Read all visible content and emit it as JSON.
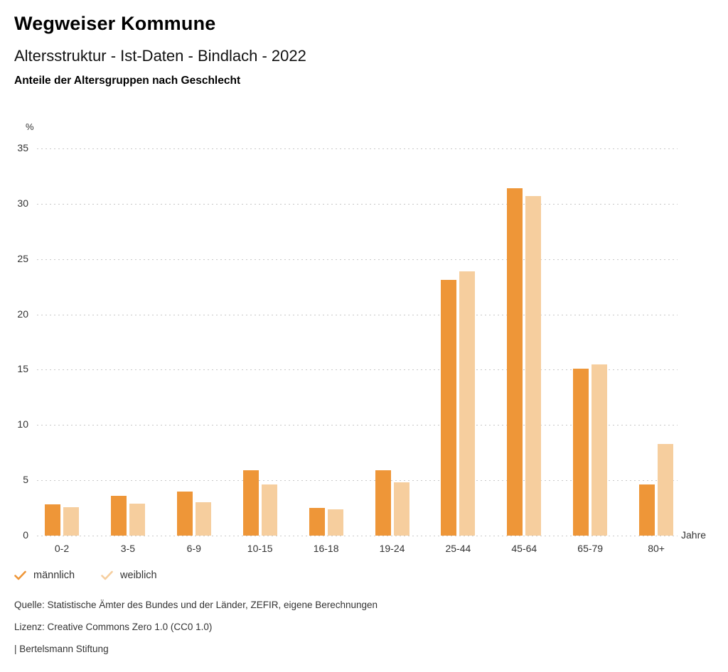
{
  "header": {
    "title": "Wegweiser Kommune",
    "subtitle": "Altersstruktur - Ist-Daten - Bindlach - 2022",
    "caption": "Anteile der Altersgruppen nach Geschlecht"
  },
  "chart_data": {
    "type": "bar",
    "title": "Anteile der Altersgruppen nach Geschlecht",
    "categories": [
      "0-2",
      "3-5",
      "6-9",
      "10-15",
      "16-18",
      "19-24",
      "25-44",
      "45-64",
      "65-79",
      "80+"
    ],
    "series": [
      {
        "name": "männlich",
        "color": "#EE9638",
        "values": [
          2.8,
          3.6,
          4.0,
          5.9,
          2.5,
          5.9,
          23.1,
          31.4,
          15.1,
          4.6
        ]
      },
      {
        "name": "weiblich",
        "color": "#F6CE9E",
        "values": [
          2.6,
          2.9,
          3.0,
          4.6,
          2.4,
          4.8,
          23.9,
          30.7,
          15.5,
          8.3
        ]
      }
    ],
    "ylabel": "%",
    "xlabel": "Jahre",
    "ylim": [
      0,
      35
    ],
    "ytick_step": 5,
    "grid": "horizontal-dotted",
    "legend_position": "bottom-left"
  },
  "legend": {
    "items": [
      {
        "label": "männlich",
        "color": "#EE9638",
        "icon": "check-icon"
      },
      {
        "label": "weiblich",
        "color": "#F6CE9E",
        "icon": "check-icon"
      }
    ]
  },
  "footer": {
    "source": "Quelle: Statistische Ämter des Bundes und der Länder, ZEFIR, eigene Berechnungen",
    "license": "Lizenz: Creative Commons Zero 1.0 (CC0 1.0)",
    "attribution": "| Bertelsmann Stiftung"
  }
}
